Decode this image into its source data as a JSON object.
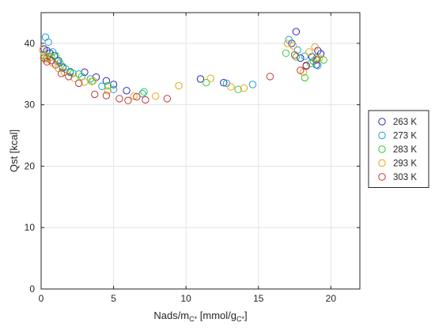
{
  "chart_data": {
    "type": "scatter",
    "title": "",
    "xlabel_parts": [
      "Nads/m",
      "C*",
      " [mmol/g",
      "C*",
      "]"
    ],
    "ylabel": "Qst [kcal]",
    "xlim": [
      0,
      22
    ],
    "ylim": [
      0,
      45
    ],
    "x_ticks": [
      0,
      5,
      10,
      15,
      20
    ],
    "y_ticks": [
      0,
      10,
      20,
      30,
      40
    ],
    "grid": true,
    "legend_position": "right-outside",
    "series": [
      {
        "name": "263 K",
        "color": "#2a2ab8",
        "points": [
          [
            0.2,
            39.1
          ],
          [
            0.4,
            38.8
          ],
          [
            0.6,
            38.4
          ],
          [
            0.9,
            38.0
          ],
          [
            1.2,
            37.2
          ],
          [
            1.5,
            36.0
          ],
          [
            2.0,
            35.3
          ],
          [
            3.0,
            35.3
          ],
          [
            3.8,
            34.5
          ],
          [
            4.5,
            33.9
          ],
          [
            5.0,
            33.3
          ],
          [
            5.9,
            32.3
          ],
          [
            11.0,
            34.2
          ],
          [
            12.6,
            33.6
          ],
          [
            17.6,
            41.9
          ],
          [
            17.3,
            40.0
          ],
          [
            17.9,
            37.6
          ],
          [
            18.3,
            36.4
          ],
          [
            18.7,
            37.8
          ],
          [
            19.1,
            38.8
          ],
          [
            19.3,
            38.3
          ],
          [
            19.0,
            36.5
          ]
        ]
      },
      {
        "name": "273 K",
        "color": "#1aa3d6",
        "points": [
          [
            0.3,
            41.0
          ],
          [
            0.5,
            40.2
          ],
          [
            0.8,
            38.6
          ],
          [
            1.1,
            37.1
          ],
          [
            1.5,
            36.2
          ],
          [
            2.0,
            35.4
          ],
          [
            2.6,
            35.0
          ],
          [
            3.4,
            34.2
          ],
          [
            4.2,
            33.0
          ],
          [
            5.0,
            32.5
          ],
          [
            7.0,
            31.8
          ],
          [
            12.8,
            33.5
          ],
          [
            14.6,
            33.3
          ],
          [
            17.1,
            40.6
          ],
          [
            17.7,
            38.9
          ],
          [
            18.2,
            37.9
          ],
          [
            18.8,
            37.1
          ],
          [
            19.1,
            36.4
          ]
        ]
      },
      {
        "name": "283 K",
        "color": "#33cc33",
        "points": [
          [
            0.2,
            38.0
          ],
          [
            0.4,
            37.6
          ],
          [
            0.7,
            37.8
          ],
          [
            1.0,
            38.0
          ],
          [
            1.3,
            36.8
          ],
          [
            1.7,
            35.8
          ],
          [
            2.2,
            35.1
          ],
          [
            2.8,
            34.6
          ],
          [
            3.5,
            33.8
          ],
          [
            4.6,
            33.1
          ],
          [
            7.1,
            32.1
          ],
          [
            11.4,
            33.6
          ],
          [
            13.6,
            32.5
          ],
          [
            16.9,
            38.4
          ],
          [
            17.6,
            37.8
          ],
          [
            18.2,
            34.4
          ],
          [
            18.6,
            36.7
          ],
          [
            19.0,
            37.6
          ],
          [
            19.5,
            37.3
          ]
        ]
      },
      {
        "name": "293 K",
        "color": "#e6a817",
        "points": [
          [
            0.1,
            38.9
          ],
          [
            0.3,
            37.4
          ],
          [
            0.5,
            37.9
          ],
          [
            0.8,
            36.8
          ],
          [
            1.2,
            35.9
          ],
          [
            1.6,
            35.3
          ],
          [
            2.3,
            34.3
          ],
          [
            3.0,
            33.7
          ],
          [
            3.6,
            33.9
          ],
          [
            4.6,
            32.3
          ],
          [
            6.4,
            31.4
          ],
          [
            7.9,
            31.4
          ],
          [
            9.5,
            33.1
          ],
          [
            11.7,
            34.3
          ],
          [
            13.1,
            32.9
          ],
          [
            14.0,
            32.7
          ],
          [
            17.0,
            40.0
          ],
          [
            17.4,
            39.6
          ],
          [
            18.1,
            35.3
          ],
          [
            18.5,
            38.6
          ],
          [
            18.9,
            39.4
          ],
          [
            19.2,
            37.6
          ]
        ]
      },
      {
        "name": "303 K",
        "color": "#c23838",
        "points": [
          [
            0.2,
            37.6
          ],
          [
            0.4,
            37.0
          ],
          [
            0.7,
            37.2
          ],
          [
            1.0,
            36.5
          ],
          [
            1.4,
            35.1
          ],
          [
            1.9,
            34.6
          ],
          [
            2.6,
            33.5
          ],
          [
            3.7,
            31.7
          ],
          [
            4.5,
            31.5
          ],
          [
            5.4,
            31.0
          ],
          [
            6.0,
            30.7
          ],
          [
            6.6,
            31.3
          ],
          [
            7.2,
            30.8
          ],
          [
            8.7,
            31.0
          ],
          [
            15.8,
            34.6
          ],
          [
            17.5,
            38.1
          ],
          [
            17.9,
            35.6
          ],
          [
            18.3,
            36.3
          ],
          [
            19.0,
            37.3
          ]
        ]
      }
    ]
  }
}
